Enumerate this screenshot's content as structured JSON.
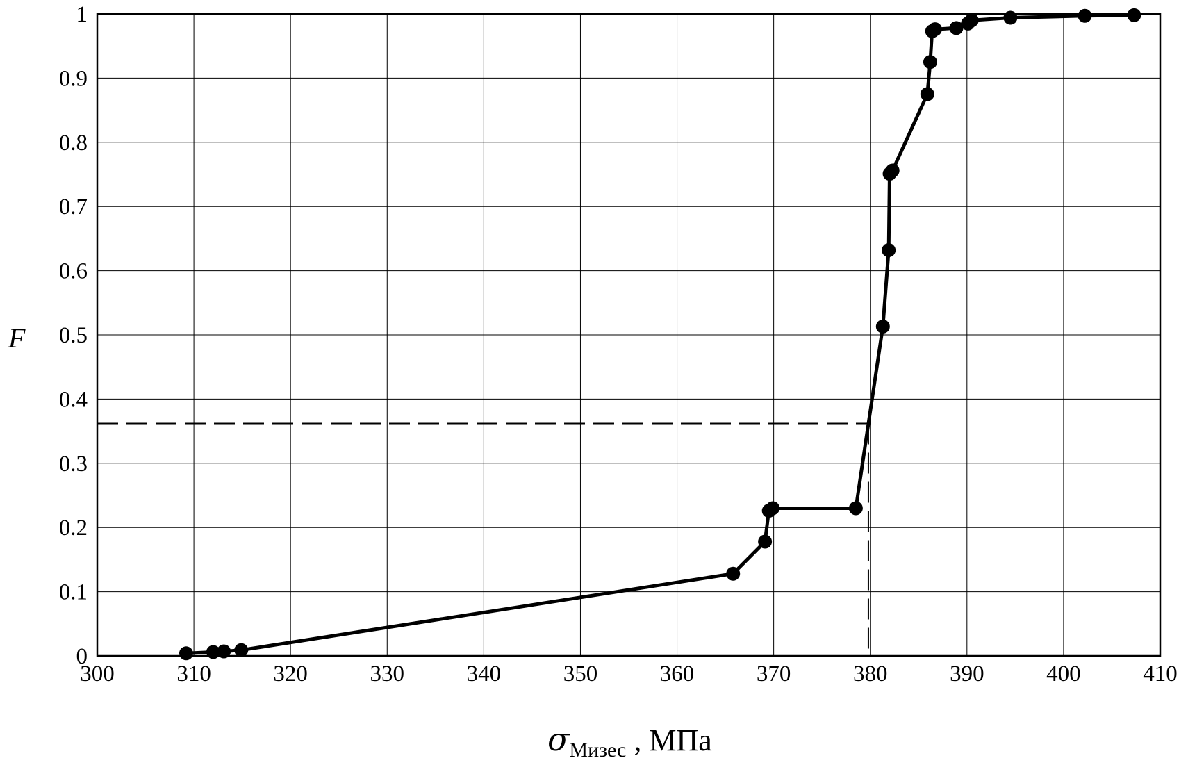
{
  "chart_data": {
    "type": "line",
    "xlabel": {
      "symbol": "σ",
      "subscript": "Мизес",
      "unit": " , МПа"
    },
    "ylabel": "F",
    "xlim": [
      300,
      410
    ],
    "ylim": [
      0,
      1
    ],
    "x_ticks": [
      300,
      310,
      320,
      330,
      340,
      350,
      360,
      370,
      380,
      390,
      400,
      410
    ],
    "y_ticks": [
      0,
      0.1,
      0.2,
      0.3,
      0.4,
      0.5,
      0.6,
      0.7,
      0.8,
      0.9,
      1
    ],
    "y_tick_labels": [
      "0",
      "0.1",
      "0.2",
      "0.3",
      "0.4",
      "0.5",
      "0.6",
      "0.7",
      "0.8",
      "0.9",
      "1"
    ],
    "grid": true,
    "series": [
      {
        "marker": "circle",
        "color": "#000000",
        "points": [
          [
            309.2,
            0.004
          ],
          [
            312.0,
            0.006
          ],
          [
            313.1,
            0.007
          ],
          [
            314.9,
            0.009
          ],
          [
            365.8,
            0.128
          ],
          [
            369.1,
            0.178
          ],
          [
            369.5,
            0.226
          ],
          [
            369.9,
            0.23
          ],
          [
            378.5,
            0.23
          ],
          [
            381.3,
            0.513
          ],
          [
            381.9,
            0.632
          ],
          [
            382.0,
            0.751
          ],
          [
            382.3,
            0.756
          ],
          [
            385.9,
            0.875
          ],
          [
            386.2,
            0.925
          ],
          [
            386.4,
            0.973
          ],
          [
            386.7,
            0.976
          ],
          [
            388.9,
            0.978
          ],
          [
            390.1,
            0.985
          ],
          [
            390.5,
            0.99
          ],
          [
            394.5,
            0.994
          ],
          [
            402.2,
            0.997
          ],
          [
            407.3,
            0.998
          ]
        ]
      }
    ],
    "reference_lines": {
      "x": 379.8,
      "y": 0.362,
      "style": "dashed"
    }
  }
}
